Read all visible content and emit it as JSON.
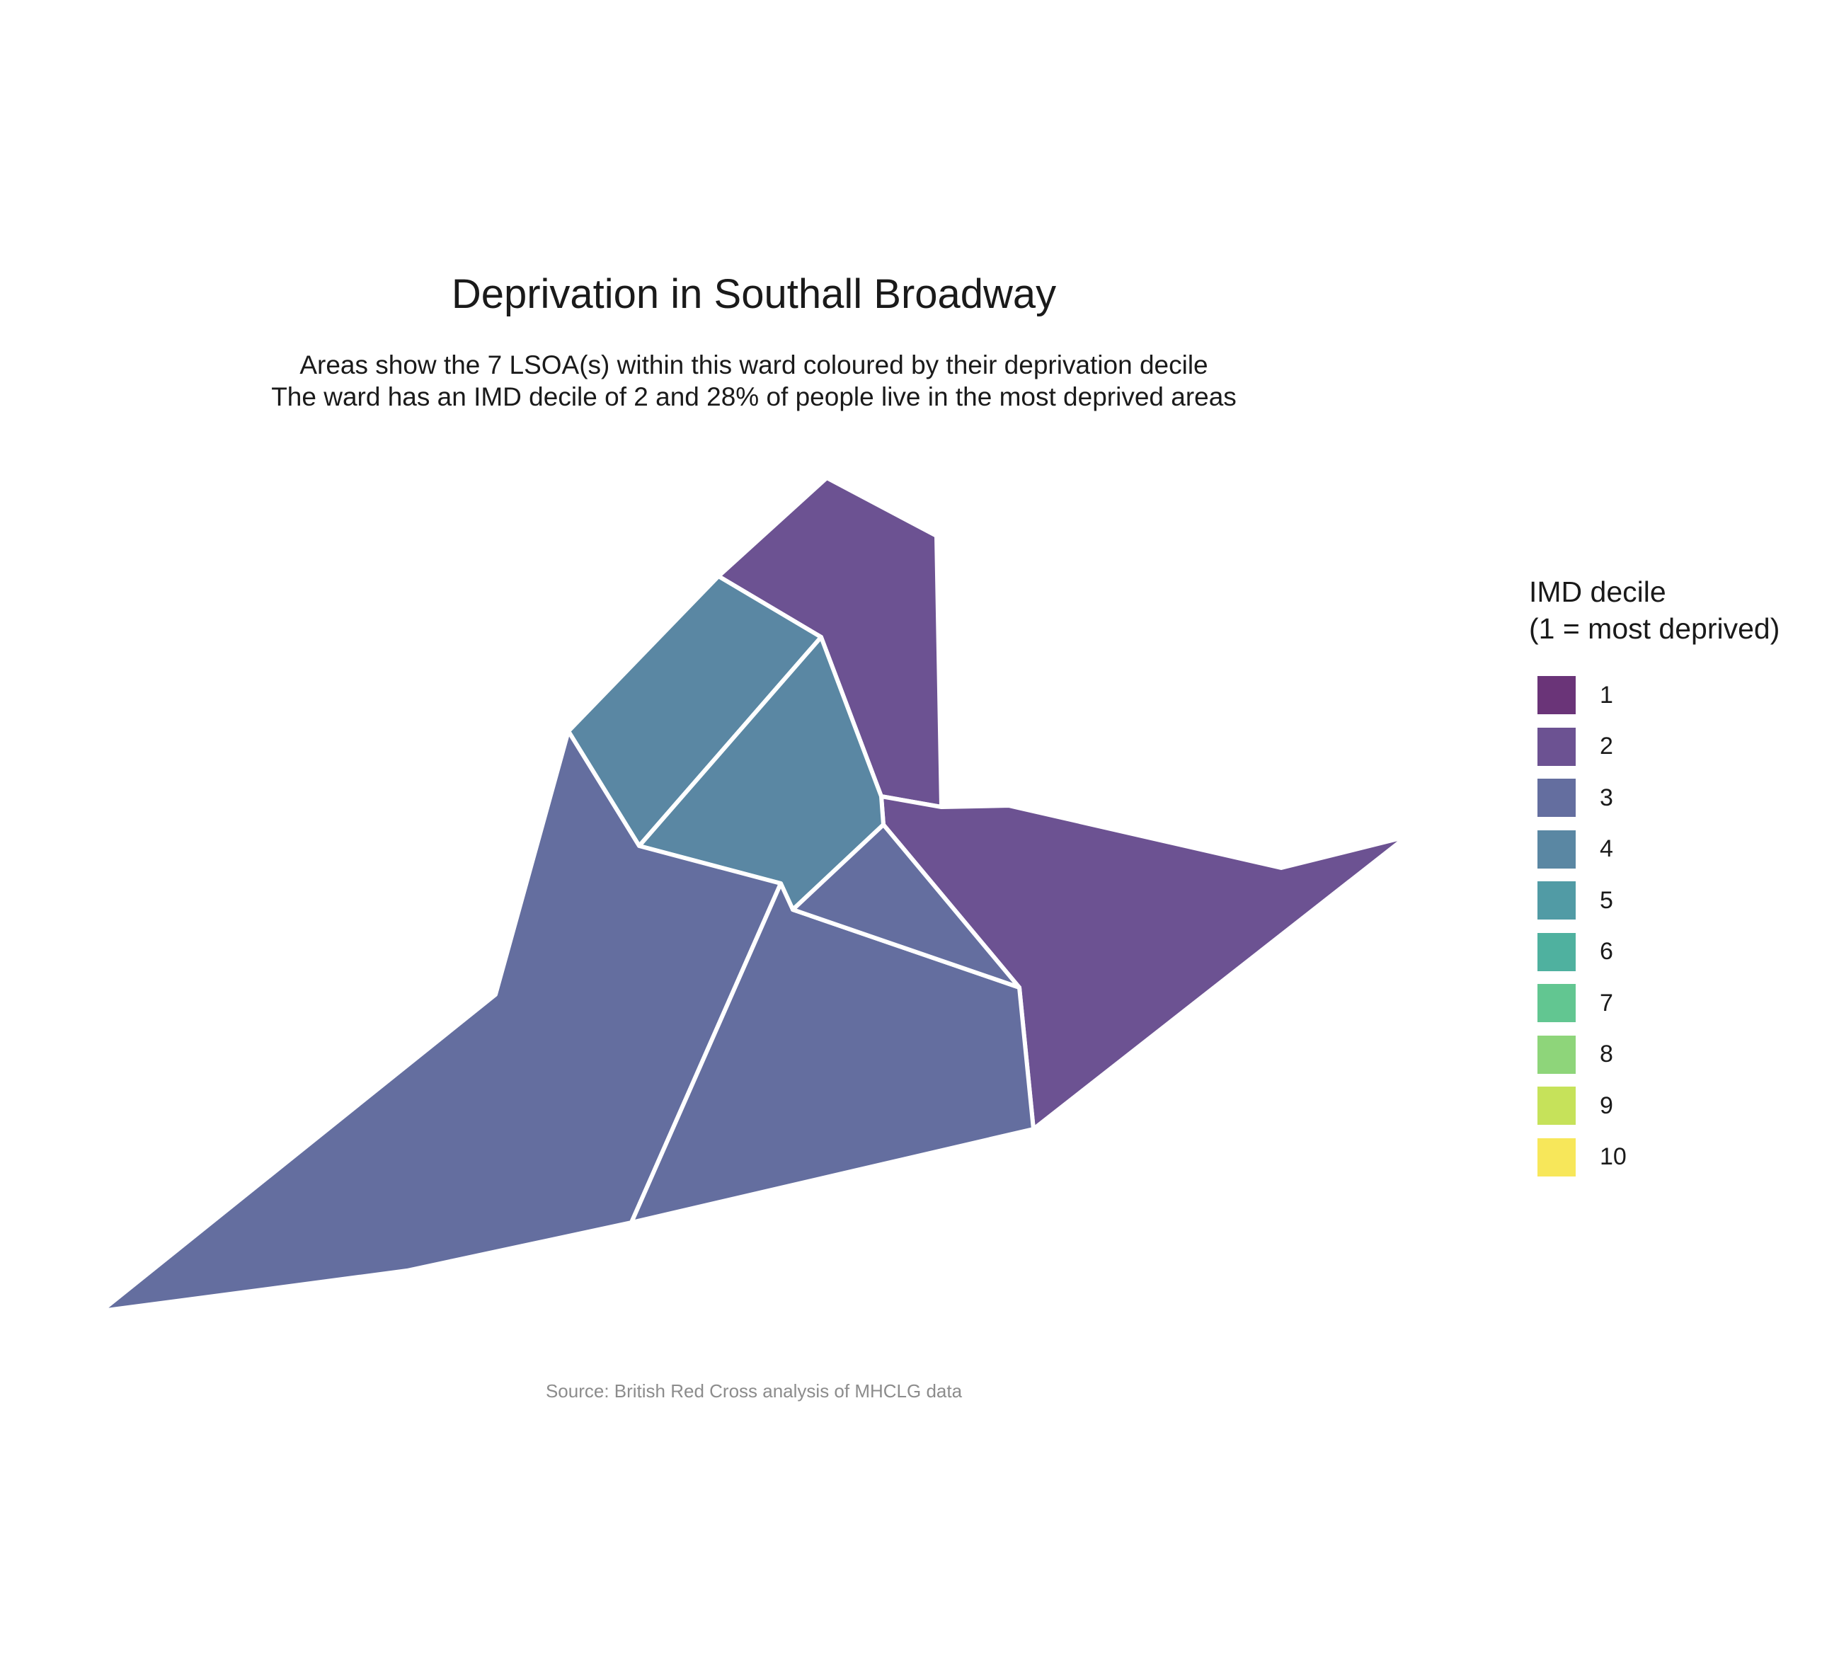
{
  "title": "Deprivation in Southall Broadway",
  "subtitle_line1": "Areas show the 7 LSOA(s) within this ward coloured by their deprivation decile",
  "subtitle_line2": "The ward has an IMD decile of 2 and 28% of people live in the most deprived areas",
  "caption": "Source: British Red Cross analysis of MHCLG data",
  "legend": {
    "title_line1": "IMD decile",
    "title_line2": "(1 = most deprived)",
    "items": [
      {
        "label": "1",
        "color": "#6a3478"
      },
      {
        "label": "2",
        "color": "#6c5292"
      },
      {
        "label": "3",
        "color": "#646e9f"
      },
      {
        "label": "4",
        "color": "#5a87a3"
      },
      {
        "label": "5",
        "color": "#519ba5"
      },
      {
        "label": "6",
        "color": "#4fb19f"
      },
      {
        "label": "7",
        "color": "#62c691"
      },
      {
        "label": "8",
        "color": "#8ed57a"
      },
      {
        "label": "9",
        "color": "#c6e25a"
      },
      {
        "label": "10",
        "color": "#f7e75a"
      }
    ]
  },
  "map": {
    "boundary_color": "#ffffff",
    "areas": [
      {
        "name": "lsoa-north-top",
        "decile": 2
      },
      {
        "name": "lsoa-east",
        "decile": 2
      },
      {
        "name": "lsoa-northwest",
        "decile": 4
      },
      {
        "name": "lsoa-center",
        "decile": 4
      },
      {
        "name": "lsoa-southwest",
        "decile": 3
      },
      {
        "name": "lsoa-south-center",
        "decile": 3
      },
      {
        "name": "lsoa-center-triangle",
        "decile": 3
      }
    ]
  }
}
